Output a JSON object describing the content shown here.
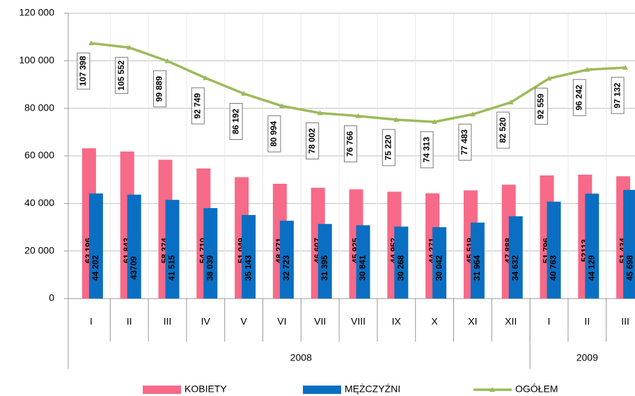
{
  "chart_data": {
    "type": "bar-line",
    "categories": [
      "I",
      "II",
      "III",
      "IV",
      "V",
      "VI",
      "VII",
      "VIII",
      "IX",
      "X",
      "XI",
      "XII",
      "I",
      "II",
      "III"
    ],
    "x_groups": [
      {
        "label": "2008",
        "span": 12
      },
      {
        "label": "2009",
        "span": 3
      }
    ],
    "series": [
      {
        "name": "KOBIETY",
        "color": "#f76a88",
        "type": "bar",
        "values": [
          63196,
          61843,
          58374,
          54710,
          51049,
          48271,
          46607,
          45925,
          44952,
          44271,
          45519,
          47888,
          51796,
          52113,
          51434
        ],
        "value_labels": [
          "63 196",
          "61 843",
          "58 374",
          "54 710",
          "51 049",
          "48 271",
          "46 607",
          "45 925",
          "44 952",
          "44 271",
          "45 519",
          "47 888",
          "51 796",
          "52113",
          "51 434"
        ]
      },
      {
        "name": "MĘŻCZYŹNI",
        "color": "#0a6fc2",
        "type": "bar",
        "values": [
          44202,
          43709,
          41515,
          38039,
          35143,
          32723,
          31395,
          30841,
          30268,
          30042,
          31964,
          34632,
          40763,
          44129,
          45698
        ],
        "value_labels": [
          "44 202",
          "43709",
          "41 515",
          "38 039",
          "35 143",
          "32 723",
          "31 395",
          "30 841",
          "30 268",
          "30 042",
          "31 964",
          "34 632",
          "40 763",
          "44 129",
          "45 698"
        ]
      },
      {
        "name": "OGÓŁEM",
        "color": "#9bbb59",
        "type": "line",
        "values": [
          107398,
          105552,
          99889,
          92749,
          86192,
          80994,
          78002,
          76766,
          75220,
          74313,
          77483,
          82520,
          92559,
          96242,
          97132
        ],
        "value_labels": [
          "107 398",
          "105 552",
          "99 889",
          "92 749",
          "86 192",
          "80 994",
          "78 002",
          "76 766",
          "75 220",
          "74 313",
          "77 483",
          "82 520",
          "92 559",
          "96 242",
          "97 132"
        ]
      }
    ],
    "ylim": [
      0,
      120000
    ],
    "yticks": [
      0,
      {
        "value": 20000,
        "label": "20 000"
      },
      {
        "value": 40000,
        "label": "40 000"
      },
      {
        "value": 60000,
        "label": "60 000"
      },
      {
        "value": 80000,
        "label": "80 000"
      },
      {
        "value": 100000,
        "label": "100 000"
      },
      {
        "value": 120000,
        "label": "120 000"
      }
    ],
    "grid": true,
    "legend": "bottom"
  }
}
